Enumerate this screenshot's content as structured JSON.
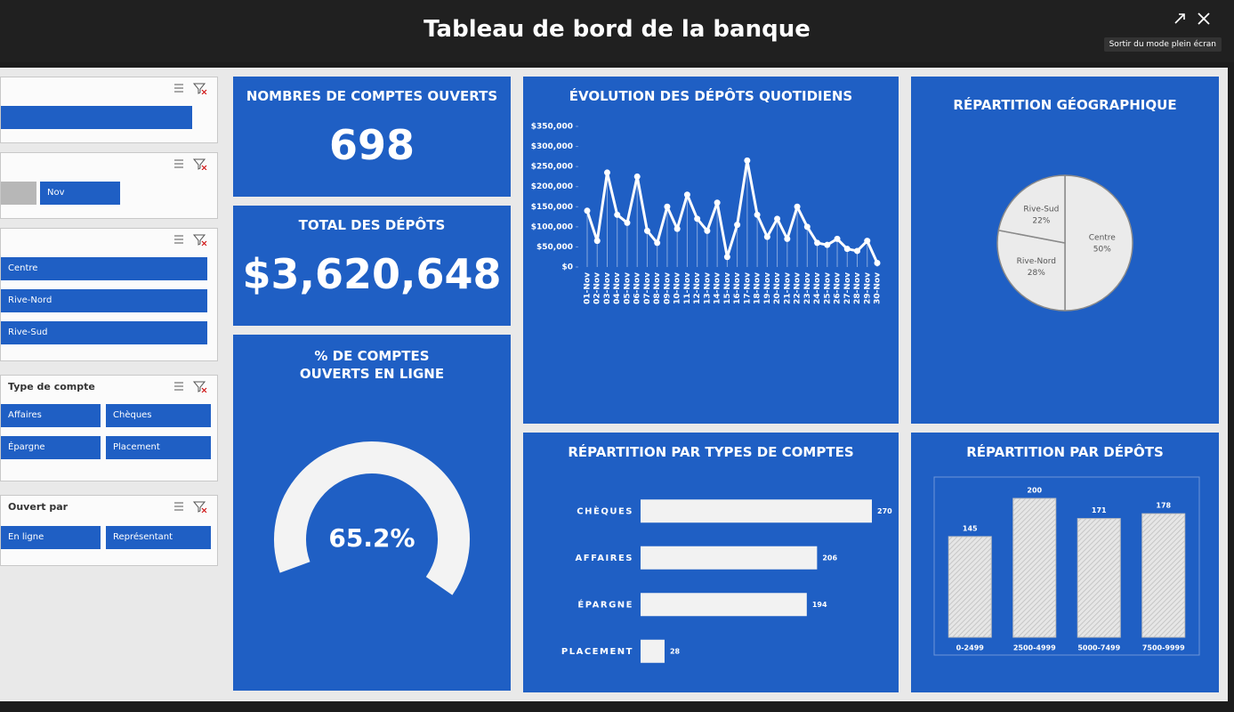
{
  "header": {
    "title": "Tableau de bord de la banque",
    "exit_label": "Sortir du mode plein écran"
  },
  "slicers": {
    "month": {
      "items": [
        "Nov"
      ]
    },
    "region": {
      "items": [
        "Centre",
        "Rive-Nord",
        "Rive-Sud"
      ]
    },
    "account_type": {
      "title": "Type de compte",
      "items": [
        "Affaires",
        "Chèques",
        "Épargne",
        "Placement"
      ]
    },
    "opened_by": {
      "title": "Ouvert par",
      "items": [
        "En ligne",
        "Représentant"
      ]
    }
  },
  "kpis": [
    {
      "title": "NOMBRES DE COMPTES OUVERTS",
      "value": 698
    },
    {
      "title": "TOTAL DES DÉPÔTS",
      "value": 3620648,
      "label": "$3,620,648"
    },
    {
      "title": "% DE COMPTES OUVERTS EN LIGNE",
      "value": 65.2,
      "label": "65.2%"
    }
  ],
  "chart_data": [
    {
      "type": "line",
      "title": "ÉVOLUTION DES DÉPÔTS QUOTIDIENS",
      "x": [
        "01-Nov",
        "02-Nov",
        "03-Nov",
        "04-Nov",
        "05-Nov",
        "06-Nov",
        "07-Nov",
        "08-Nov",
        "09-Nov",
        "10-Nov",
        "11-Nov",
        "12-Nov",
        "13-Nov",
        "14-Nov",
        "15-Nov",
        "16-Nov",
        "17-Nov",
        "18-Nov",
        "19-Nov",
        "20-Nov",
        "21-Nov",
        "22-Nov",
        "23-Nov",
        "24-Nov",
        "25-Nov",
        "26-Nov",
        "27-Nov",
        "28-Nov",
        "29-Nov",
        "30-Nov"
      ],
      "values": [
        140000,
        65000,
        235000,
        130000,
        110000,
        225000,
        90000,
        60000,
        150000,
        95000,
        180000,
        120000,
        90000,
        160000,
        25000,
        105000,
        265000,
        130000,
        75000,
        120000,
        70000,
        150000,
        100000,
        60000,
        55000,
        70000,
        45000,
        40000,
        65000,
        10000
      ],
      "color": "#ffffff",
      "ylim": [
        0,
        350000
      ],
      "yticks": [
        {
          "value": 0,
          "label": "$0"
        },
        {
          "value": 50000,
          "label": "$50,000"
        },
        {
          "value": 100000,
          "label": "$100,000"
        },
        {
          "value": 150000,
          "label": "$150,000"
        },
        {
          "value": 200000,
          "label": "$200,000"
        },
        {
          "value": 250000,
          "label": "$250,000"
        },
        {
          "value": 300000,
          "label": "$300,000"
        },
        {
          "value": 350000,
          "label": "$350,000"
        }
      ]
    },
    {
      "type": "pie",
      "title": "RÉPARTITION GÉOGRAPHIQUE",
      "categories": [
        "Centre",
        "Rive-Nord",
        "Rive-Sud"
      ],
      "values": [
        50,
        28,
        22
      ],
      "value_labels": [
        "50%",
        "28%",
        "22%"
      ],
      "colors": [
        "#ebebeb",
        "#ebebeb",
        "#ebebeb"
      ]
    },
    {
      "type": "bar",
      "orientation": "horizontal",
      "title": "RÉPARTITION PAR TYPES DE COMPTES",
      "categories": [
        "CHÈQUES",
        "AFFAIRES",
        "ÉPARGNE",
        "PLACEMENT"
      ],
      "values": [
        270,
        206,
        194,
        28
      ],
      "color": "#f2f2f2"
    },
    {
      "type": "bar",
      "orientation": "vertical",
      "title": "RÉPARTITION PAR DÉPÔTS",
      "categories": [
        "0-2499",
        "2500-4999",
        "5000-7499",
        "7500-9999"
      ],
      "values": [
        145,
        200,
        171,
        178
      ],
      "color": "#e6e6e6"
    }
  ]
}
